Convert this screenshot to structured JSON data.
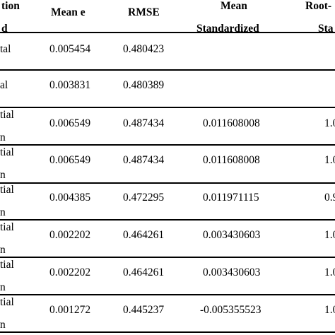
{
  "header": {
    "col1_line1": "tion",
    "col1_line2": "d",
    "mean_e": "Mean e",
    "rmse": "RMSE",
    "mean_std_line1": "Mean",
    "mean_std_line2": "Standardized",
    "root_line1": "Root-",
    "root_line2": "Sta"
  },
  "rows": [
    {
      "label1": "tal",
      "label2": "",
      "mean_e": "0.005454",
      "rmse": "0.480423",
      "mean_std": "",
      "root": ""
    },
    {
      "label1": "al",
      "label2": "",
      "mean_e": "0.003831",
      "rmse": "0.480389",
      "mean_std": "",
      "root": ""
    },
    {
      "label1": "tial",
      "label2": "n",
      "mean_e": "0.006549",
      "rmse": "0.487434",
      "mean_std": "0.011608008",
      "root": "1.0"
    },
    {
      "label1": "tial",
      "label2": "n",
      "mean_e": "0.006549",
      "rmse": "0.487434",
      "mean_std": "0.011608008",
      "root": "1.0"
    },
    {
      "label1": "tial",
      "label2": "n",
      "mean_e": "0.004385",
      "rmse": "0.472295",
      "mean_std": "0.011971115",
      "root": "0.9"
    },
    {
      "label1": "tial",
      "label2": "n",
      "mean_e": "0.002202",
      "rmse": "0.464261",
      "mean_std": "0.003430603",
      "root": "1.0"
    },
    {
      "label1": "tial",
      "label2": "n",
      "mean_e": "0.002202",
      "rmse": "0.464261",
      "mean_std": "0.003430603",
      "root": "1.0"
    },
    {
      "label1": "tial",
      "label2": "n",
      "mean_e": "0.001272",
      "rmse": "0.445237",
      "mean_std": "-0.005355523",
      "root": "1.0"
    }
  ]
}
